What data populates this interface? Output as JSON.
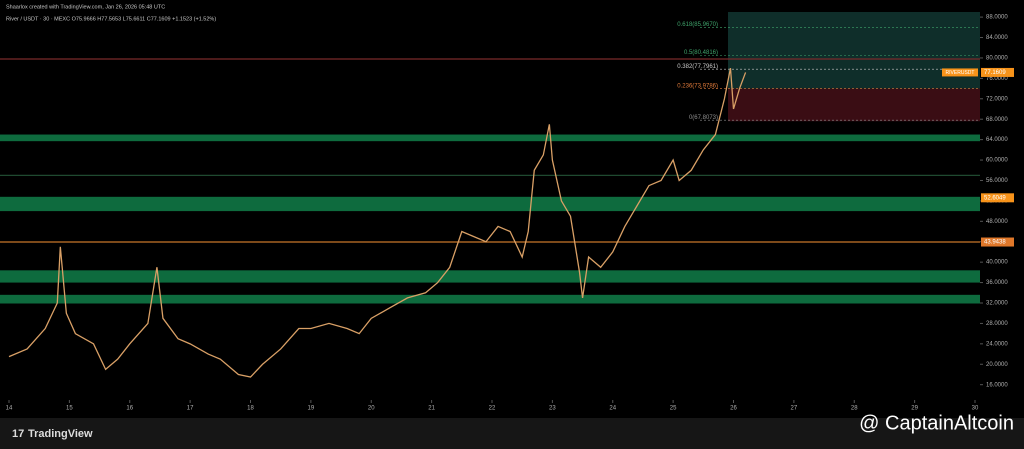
{
  "header": {
    "credit": "Shaarlox created with TradingView.com, Jan 26, 2026 05:48 UTC",
    "symbol_info": "River / USDT · 30 · MEXC  O75.9666  H77.5653  L75.6611  C77.1609  +1.1523 (+1.52%)"
  },
  "chart_data": {
    "type": "line",
    "x": [
      14.0,
      14.3,
      14.6,
      14.8,
      14.85,
      14.95,
      15.1,
      15.4,
      15.6,
      15.8,
      16.0,
      16.3,
      16.45,
      16.55,
      16.8,
      17.0,
      17.3,
      17.5,
      17.8,
      18.0,
      18.2,
      18.5,
      18.8,
      19.0,
      19.3,
      19.6,
      19.8,
      20.0,
      20.3,
      20.6,
      20.9,
      21.1,
      21.3,
      21.5,
      21.7,
      21.9,
      22.1,
      22.3,
      22.5,
      22.6,
      22.7,
      22.85,
      22.95,
      23.0,
      23.15,
      23.3,
      23.45,
      23.5,
      23.6,
      23.8,
      24.0,
      24.2,
      24.4,
      24.6,
      24.8,
      25.0,
      25.1,
      25.3,
      25.5,
      25.7,
      25.85,
      25.95,
      26.0,
      26.1,
      26.2
    ],
    "series": [
      {
        "name": "RIVERUSDT",
        "color": "#d9a066",
        "values": [
          21.5,
          23,
          27,
          32,
          43,
          30,
          26,
          24,
          19,
          21,
          24,
          28,
          39,
          29,
          25,
          24,
          22,
          21,
          18,
          17.5,
          20,
          23,
          27,
          27,
          28,
          27,
          26,
          29,
          31,
          33,
          34,
          36,
          39,
          46,
          45,
          44,
          47,
          46,
          41,
          46,
          58,
          61,
          67,
          60,
          52,
          49,
          38,
          33,
          41,
          39,
          42,
          47,
          51,
          55,
          56,
          60,
          56,
          58,
          62,
          65,
          72,
          78,
          70,
          74,
          77.1609
        ]
      }
    ],
    "xlim": [
      14,
      30
    ],
    "xticks": [
      14,
      15,
      16,
      17,
      18,
      19,
      20,
      21,
      22,
      23,
      24,
      25,
      26,
      27,
      28,
      29,
      30
    ],
    "ylim": [
      13,
      89
    ],
    "yticks": [
      {
        "value": 16,
        "label": "16.0000"
      },
      {
        "value": 20,
        "label": "20.0000"
      },
      {
        "value": 24,
        "label": "24.0000"
      },
      {
        "value": 28,
        "label": "28.0000"
      },
      {
        "value": 32,
        "label": "32.0000"
      },
      {
        "value": 36,
        "label": "36.0000"
      },
      {
        "value": 40,
        "label": "40.0000"
      },
      {
        "value": 44,
        "label": "44.0000"
      },
      {
        "value": 48,
        "label": "48.0000"
      },
      {
        "value": 52,
        "label": "52.0000"
      },
      {
        "value": 56,
        "label": "56.0000"
      },
      {
        "value": 60,
        "label": "60.0000"
      },
      {
        "value": 64,
        "label": "64.0000"
      },
      {
        "value": 68,
        "label": "68.0000"
      },
      {
        "value": 72,
        "label": "72.0000"
      },
      {
        "value": 76,
        "label": "76.0000"
      },
      {
        "value": 80,
        "label": "80.0000"
      },
      {
        "value": 84,
        "label": "84.0000"
      },
      {
        "value": 88,
        "label": "88.0000"
      }
    ],
    "zones": [
      {
        "from": 63.7,
        "to": 65,
        "color": "#0e6b3e"
      },
      {
        "from": 50,
        "to": 52.8,
        "color": "#0e6b3e"
      },
      {
        "from": 36,
        "to": 38.4,
        "color": "#0e6b3e"
      },
      {
        "from": 31.9,
        "to": 33.6,
        "color": "#0e6b3e"
      }
    ],
    "lines": [
      {
        "value": 79.8,
        "color": "#7a2a2a"
      },
      {
        "value": 57,
        "color": "#1f4a30"
      },
      {
        "value": 43.9438,
        "color": "#c8772a"
      }
    ],
    "position": {
      "target": 89,
      "entry": 74,
      "stop": 67.6
    },
    "fib_levels": [
      {
        "value": 85.967,
        "label": "0.618(85.9670)",
        "color": "#3fa36b"
      },
      {
        "value": 80.4816,
        "label": "0.5(80.4816)",
        "color": "#3fa36b"
      },
      {
        "value": 77.7961,
        "label": "0.382(77.7961)",
        "color": "#c8c8c8"
      },
      {
        "value": 73.9786,
        "label": "0.236(73.9786)",
        "color": "#e07a3a"
      },
      {
        "value": 67.8073,
        "label": "0(67.8073)",
        "color": "#909090"
      }
    ],
    "price_labels": [
      {
        "value": 77.1609,
        "label": "77.1609",
        "color": "#f7931a"
      },
      {
        "value": 52.6049,
        "label": "52.6049",
        "color": "#f7931a"
      },
      {
        "value": 43.9438,
        "label": "43.9438",
        "color": "#e0782a"
      }
    ]
  },
  "footer": {
    "logo": "TradingView",
    "watermark": "@ CaptainAltcoin"
  }
}
